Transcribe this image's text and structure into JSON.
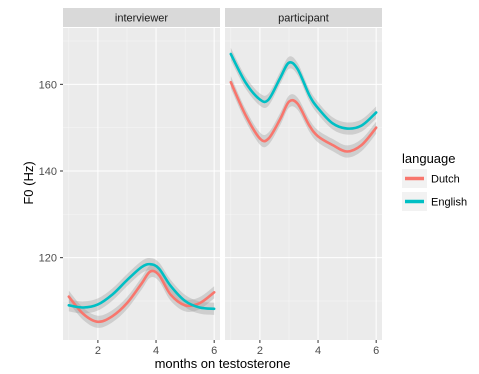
{
  "chart_data": {
    "type": "line",
    "xlabel": "months on testosterone",
    "ylabel": "F0 (Hz)",
    "xlim": [
      0.8,
      6.2
    ],
    "ylim": [
      101,
      173
    ],
    "x_ticks": [
      2,
      4,
      6
    ],
    "y_ticks": [
      120,
      140,
      160
    ],
    "grid": true,
    "confidence_band": true,
    "legend": {
      "title": "language",
      "position": "right"
    },
    "panels": [
      {
        "strip": "interviewer",
        "series": [
          {
            "name": "Dutch",
            "color": "#F8766D",
            "points": [
              [
                1.0,
                111.0
              ],
              [
                1.5,
                107.0
              ],
              [
                2.0,
                105.2
              ],
              [
                2.5,
                106.5
              ],
              [
                3.0,
                109.5
              ],
              [
                3.5,
                114.0
              ],
              [
                3.8,
                116.8
              ],
              [
                4.1,
                116.0
              ],
              [
                4.5,
                111.5
              ],
              [
                5.0,
                109.0
              ],
              [
                5.5,
                109.5
              ],
              [
                6.0,
                112.0
              ]
            ]
          },
          {
            "name": "English",
            "color": "#00BFC4",
            "points": [
              [
                1.0,
                109.0
              ],
              [
                1.5,
                108.5
              ],
              [
                2.0,
                109.2
              ],
              [
                2.5,
                111.5
              ],
              [
                3.0,
                114.8
              ],
              [
                3.5,
                117.8
              ],
              [
                3.8,
                118.5
              ],
              [
                4.1,
                117.5
              ],
              [
                4.5,
                113.5
              ],
              [
                5.0,
                110.0
              ],
              [
                5.5,
                108.5
              ],
              [
                6.0,
                108.2
              ]
            ]
          }
        ]
      },
      {
        "strip": "participant",
        "series": [
          {
            "name": "Dutch",
            "color": "#F8766D",
            "points": [
              [
                1.0,
                160.5
              ],
              [
                1.5,
                153.0
              ],
              [
                2.0,
                147.5
              ],
              [
                2.3,
                147.5
              ],
              [
                2.7,
                152.0
              ],
              [
                3.0,
                156.0
              ],
              [
                3.3,
                155.5
              ],
              [
                3.7,
                150.5
              ],
              [
                4.0,
                148.0
              ],
              [
                4.5,
                146.0
              ],
              [
                5.0,
                144.5
              ],
              [
                5.5,
                146.0
              ],
              [
                6.0,
                150.0
              ]
            ]
          },
          {
            "name": "English",
            "color": "#00BFC4",
            "points": [
              [
                1.0,
                167.0
              ],
              [
                1.5,
                160.5
              ],
              [
                2.0,
                156.5
              ],
              [
                2.3,
                156.5
              ],
              [
                2.7,
                161.5
              ],
              [
                3.0,
                165.0
              ],
              [
                3.3,
                163.5
              ],
              [
                3.7,
                157.5
              ],
              [
                4.0,
                154.5
              ],
              [
                4.5,
                151.0
              ],
              [
                5.0,
                149.8
              ],
              [
                5.5,
                150.5
              ],
              [
                6.0,
                153.5
              ]
            ]
          }
        ]
      }
    ]
  },
  "colors": {
    "panel_background": "#EBEBEB",
    "strip_background": "#D9D9D9",
    "grid_major": "#FFFFFF",
    "band": "#999999"
  }
}
